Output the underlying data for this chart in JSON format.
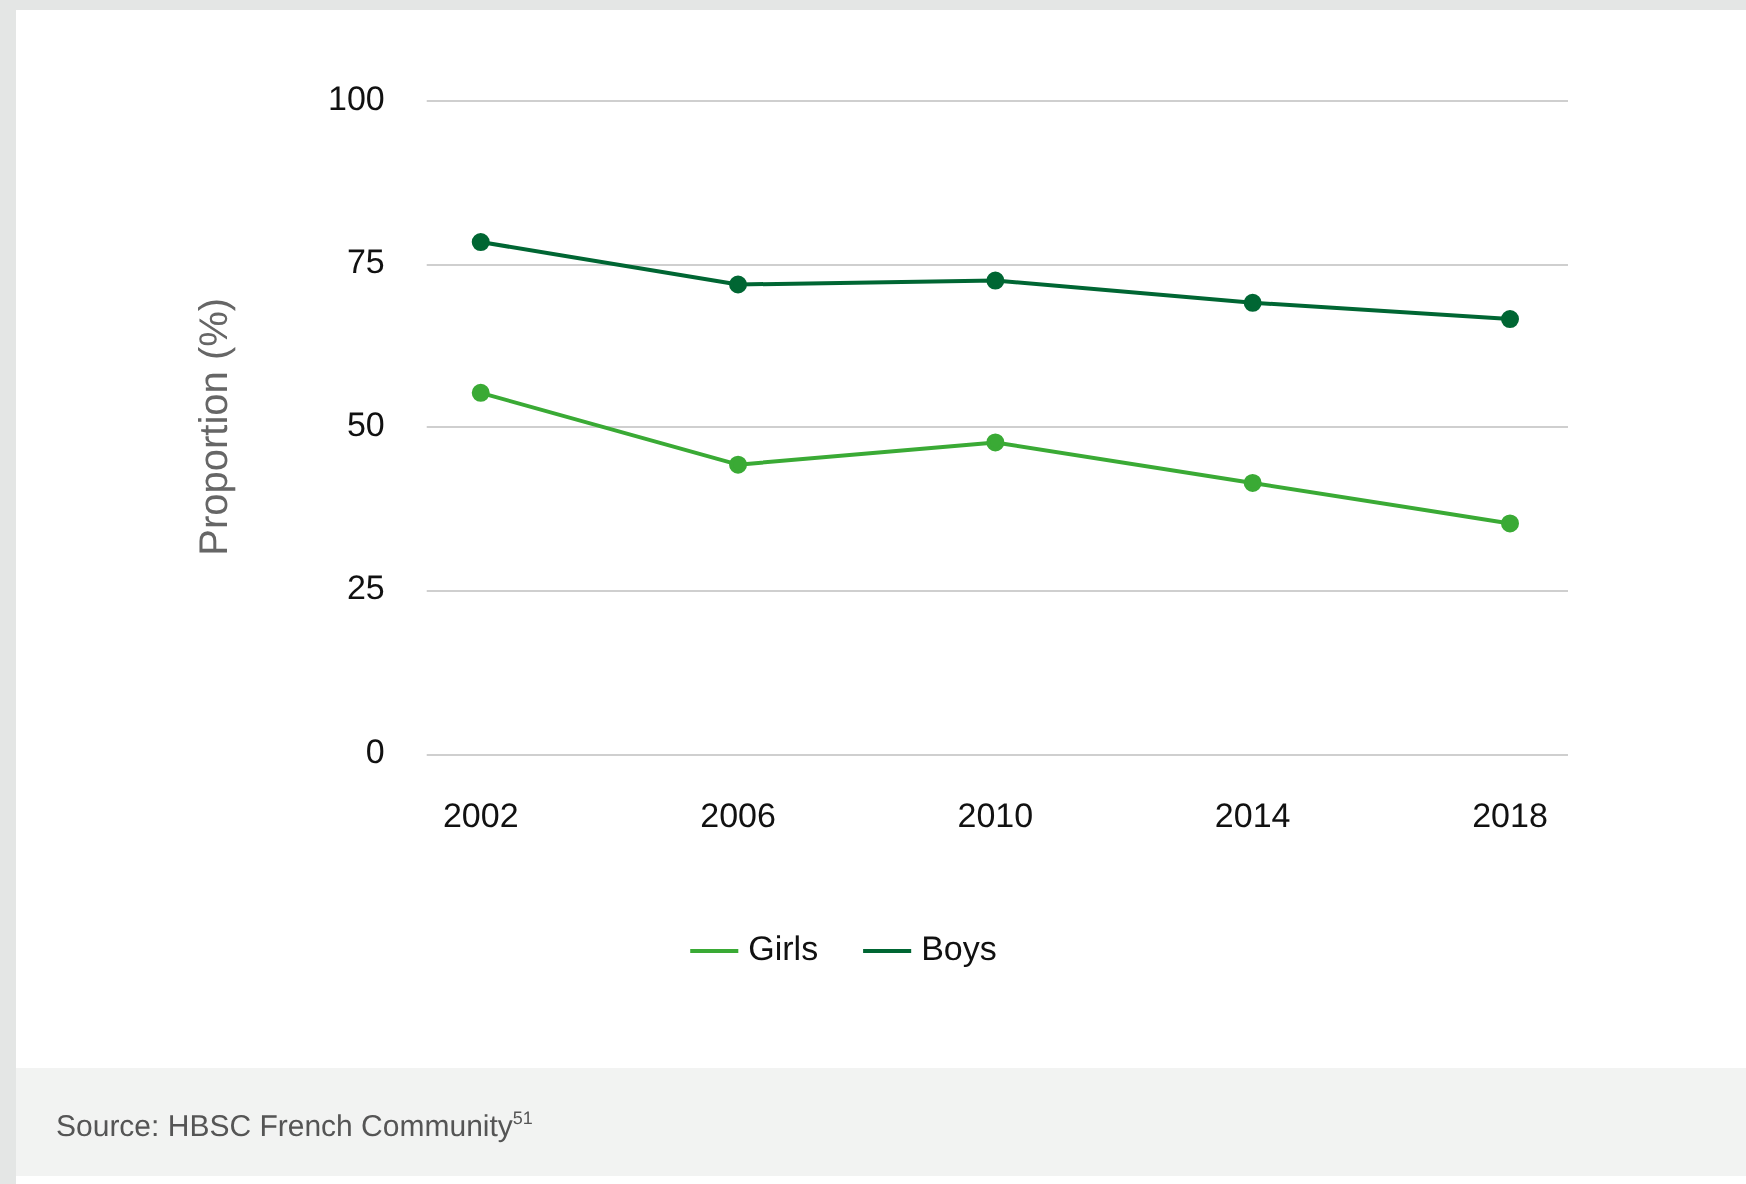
{
  "chart_data": {
    "type": "line",
    "categories": [
      "2002",
      "2006",
      "2010",
      "2014",
      "2018"
    ],
    "series": [
      {
        "name": "Girls",
        "color": "#3aaa35",
        "values": [
          55.2,
          44.2,
          47.6,
          41.4,
          35.2
        ]
      },
      {
        "name": "Boys",
        "color": "#006633",
        "values": [
          78.3,
          71.8,
          72.4,
          69.0,
          66.5
        ]
      }
    ],
    "ylabel": "Proportion (%)",
    "ylim": [
      0,
      100
    ],
    "yticks": [
      0,
      25,
      50,
      75,
      100
    ],
    "grid": "y",
    "legend": "bottom",
    "marker": "circle",
    "line_style": "solid",
    "annotations": [
      "Source: HBSC French Community$^{51}$"
    ]
  }
}
